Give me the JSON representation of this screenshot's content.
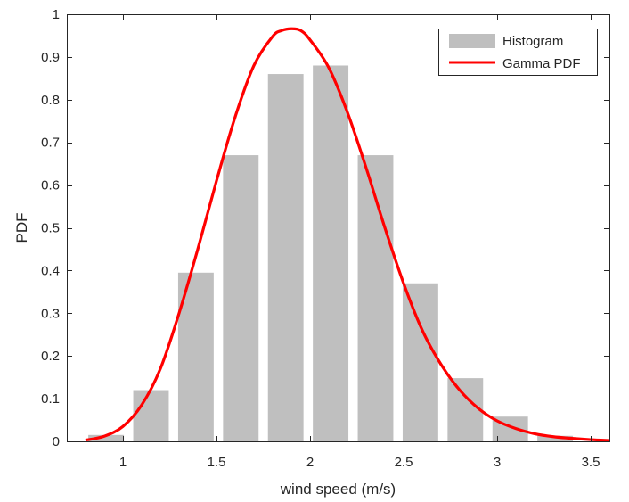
{
  "chart_data": {
    "type": "bar",
    "title": "",
    "xlabel": "wind speed (m/s)",
    "ylabel": "PDF",
    "xlim": [
      0.7,
      3.6
    ],
    "ylim": [
      0,
      1
    ],
    "xticks": [
      1,
      1.5,
      2,
      2.5,
      3,
      3.5
    ],
    "xtick_labels": [
      "1",
      "1.5",
      "2",
      "2.5",
      "3",
      "3.5"
    ],
    "yticks": [
      0,
      0.1,
      0.2,
      0.3,
      0.4,
      0.5,
      0.6,
      0.7,
      0.8,
      0.9,
      1
    ],
    "ytick_labels": [
      "0",
      "0.1",
      "0.2",
      "0.3",
      "0.4",
      "0.5",
      "0.6",
      "0.7",
      "0.8",
      "0.9",
      "1"
    ],
    "grid": false,
    "legend_position": "top-right",
    "bin_width": 0.19,
    "series": [
      {
        "name": "Histogram",
        "kind": "bar",
        "color": "#bfbfbf",
        "x": [
          0.91,
          1.15,
          1.39,
          1.63,
          1.87,
          2.11,
          2.35,
          2.59,
          2.83,
          3.07,
          3.31
        ],
        "values": [
          0.015,
          0.12,
          0.395,
          0.67,
          0.86,
          0.88,
          0.67,
          0.37,
          0.148,
          0.058,
          0.013
        ]
      },
      {
        "name": "Gamma PDF",
        "kind": "line",
        "color": "#ff0000",
        "x": [
          0.8,
          0.9,
          1.0,
          1.1,
          1.2,
          1.3,
          1.4,
          1.5,
          1.6,
          1.7,
          1.8,
          1.85,
          1.9,
          1.95,
          2.0,
          2.1,
          2.2,
          2.3,
          2.4,
          2.5,
          2.6,
          2.7,
          2.8,
          2.9,
          3.0,
          3.1,
          3.2,
          3.3,
          3.4,
          3.5,
          3.6
        ],
        "values": [
          0.003,
          0.012,
          0.035,
          0.085,
          0.17,
          0.3,
          0.45,
          0.61,
          0.76,
          0.88,
          0.948,
          0.962,
          0.966,
          0.962,
          0.94,
          0.875,
          0.77,
          0.64,
          0.5,
          0.37,
          0.26,
          0.18,
          0.12,
          0.077,
          0.048,
          0.03,
          0.018,
          0.011,
          0.007,
          0.004,
          0.002
        ]
      }
    ]
  }
}
